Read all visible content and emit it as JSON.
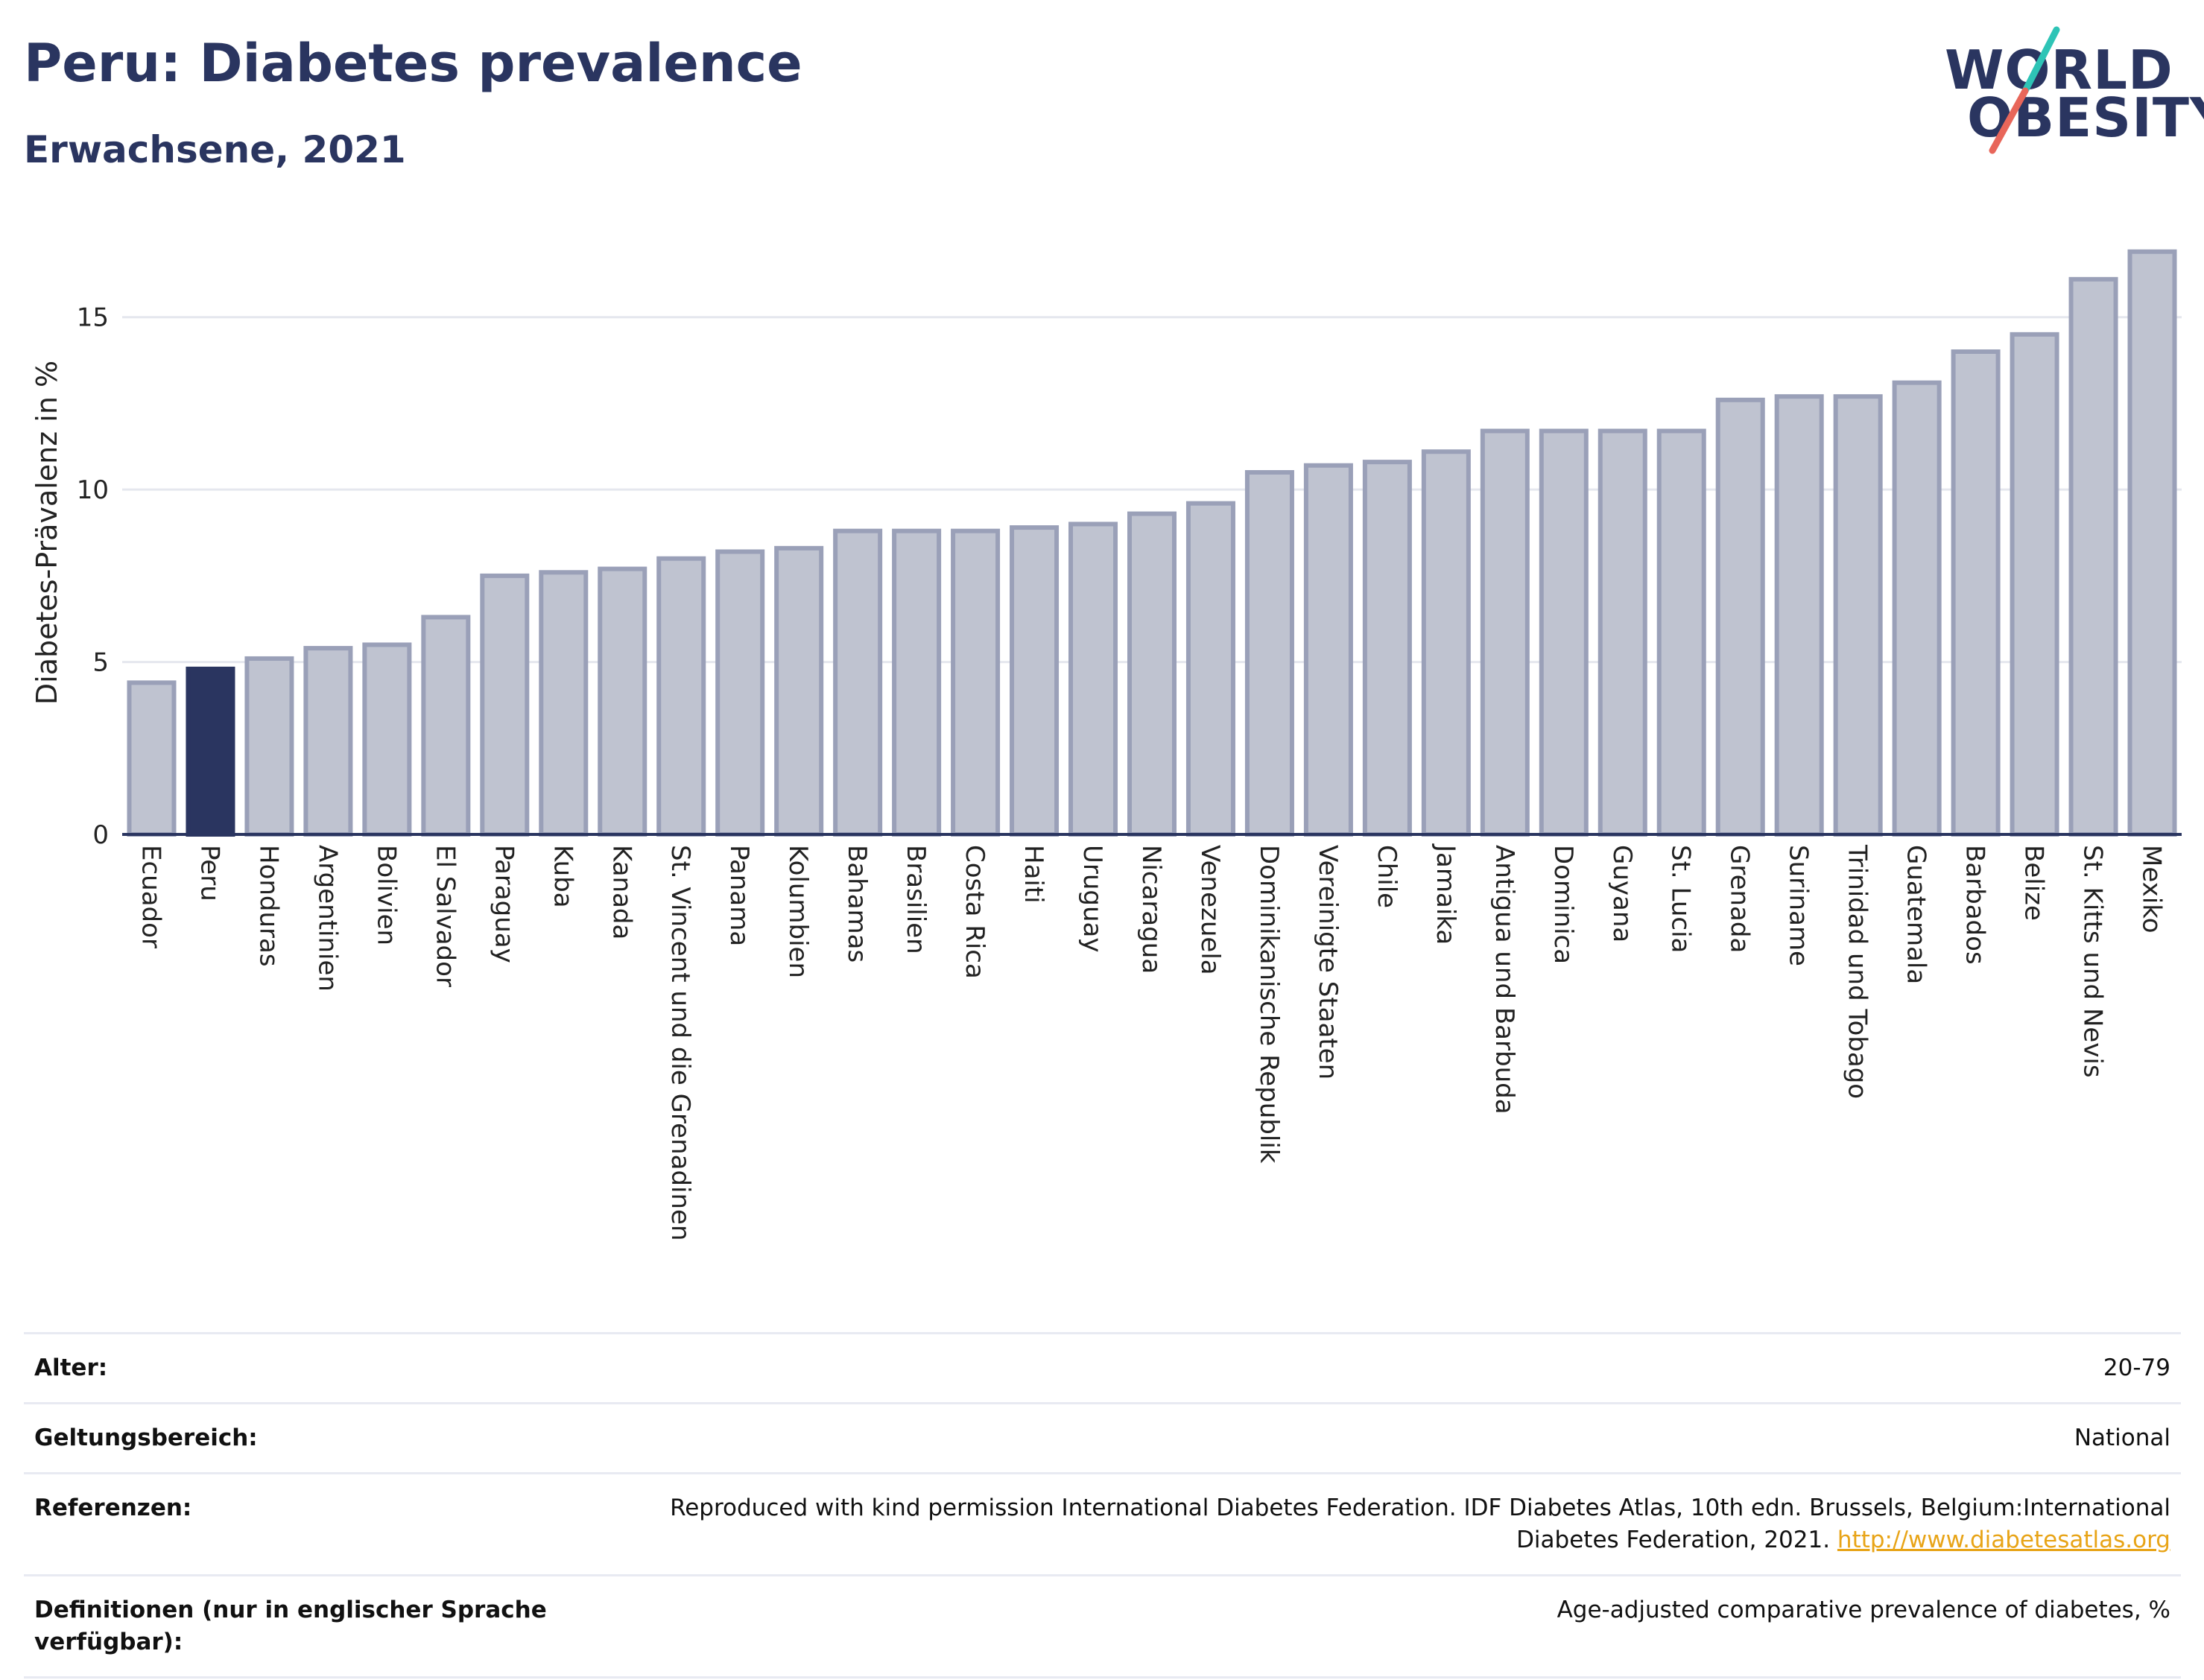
{
  "header": {
    "title": "Peru: Diabetes prevalence",
    "subtitle": "Erwachsene, 2021",
    "logo_line1": "WORLD",
    "logo_line2": "OBESITY"
  },
  "chart_data": {
    "type": "bar",
    "title": "Peru: Diabetes prevalence",
    "subtitle": "Erwachsene, 2021",
    "xlabel": "",
    "ylabel": "Diabetes-Prävalenz in %",
    "ylim": [
      0,
      17.5
    ],
    "yticks": [
      0,
      5,
      10,
      15
    ],
    "grid": true,
    "highlight": "Peru",
    "colors": {
      "bar": "#bfc3d0",
      "bar_stroke": "#9aa0b8",
      "highlight": "#2a3560",
      "grid": "#e5e7ee",
      "axis": "#2a3560"
    },
    "categories": [
      "Ecuador",
      "Peru",
      "Honduras",
      "Argentinien",
      "Bolivien",
      "El Salvador",
      "Paraguay",
      "Kuba",
      "Kanada",
      "St. Vincent und die Grenadinen",
      "Panama",
      "Kolumbien",
      "Bahamas",
      "Brasilien",
      "Costa Rica",
      "Haiti",
      "Uruguay",
      "Nicaragua",
      "Venezuela",
      "Dominikanische Republik",
      "Vereinigte Staaten",
      "Chile",
      "Jamaika",
      "Antigua und Barbuda",
      "Dominica",
      "Guyana",
      "St. Lucia",
      "Grenada",
      "Suriname",
      "Trinidad und Tobago",
      "Guatemala",
      "Barbados",
      "Belize",
      "St. Kitts und Nevis",
      "Mexiko"
    ],
    "values": [
      4.4,
      4.8,
      5.1,
      5.4,
      5.5,
      6.3,
      7.5,
      7.6,
      7.7,
      8.0,
      8.2,
      8.3,
      8.8,
      8.8,
      8.8,
      8.9,
      9.0,
      9.3,
      9.6,
      10.5,
      10.7,
      10.8,
      11.1,
      11.7,
      11.7,
      11.7,
      11.7,
      12.6,
      12.7,
      12.7,
      13.1,
      14.0,
      14.5,
      16.1,
      16.9
    ]
  },
  "info": {
    "rows": [
      {
        "label": "Alter:",
        "value": "20-79"
      },
      {
        "label": "Geltungsbereich:",
        "value": "National"
      },
      {
        "label": "Referenzen:",
        "value": "Reproduced with kind permission International Diabetes Federation.  IDF Diabetes Atlas, 10th edn. Brussels, Belgium:International Diabetes Federation, 2021.",
        "link": "http://www.diabetesatlas.org"
      },
      {
        "label": "Definitionen (nur in englischer Sprache verfügbar):",
        "value": "Age-adjusted comparative prevalence of diabetes, %"
      }
    ]
  }
}
